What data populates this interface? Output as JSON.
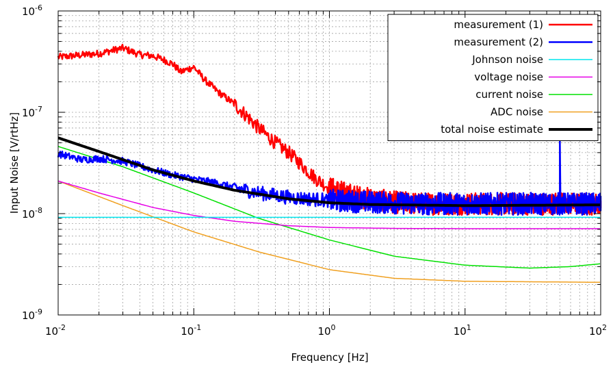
{
  "chart_data": {
    "type": "line",
    "xlabel": "Frequency [Hz]",
    "ylabel": "Input Noise [V/rtHz]",
    "xscale": "log",
    "yscale": "log",
    "xlim": [
      0.01,
      100
    ],
    "ylim": [
      1e-09,
      1e-06
    ],
    "grid": true,
    "legend_position": "top-right",
    "x_ticks": [
      {
        "value": 0.01,
        "base": "10",
        "exp": "-2"
      },
      {
        "value": 0.1,
        "base": "10",
        "exp": "-1"
      },
      {
        "value": 1,
        "base": "10",
        "exp": "0"
      },
      {
        "value": 10,
        "base": "10",
        "exp": "1"
      },
      {
        "value": 100,
        "base": "10",
        "exp": "2"
      }
    ],
    "y_ticks": [
      {
        "value": 1e-09,
        "base": "10",
        "exp": "-9"
      },
      {
        "value": 1e-08,
        "base": "10",
        "exp": "-8"
      },
      {
        "value": 1e-07,
        "base": "10",
        "exp": "-7"
      },
      {
        "value": 1e-06,
        "base": "10",
        "exp": "-6"
      }
    ],
    "series": [
      {
        "name": "measurement (1)",
        "color": "#ff0000",
        "width": 2.5,
        "noisy": true,
        "points": [
          [
            0.01,
            3.5e-07
          ],
          [
            0.02,
            3.8e-07
          ],
          [
            0.03,
            4.3e-07
          ],
          [
            0.04,
            3.7e-07
          ],
          [
            0.05,
            3.6e-07
          ],
          [
            0.06,
            3.3e-07
          ],
          [
            0.07,
            3e-07
          ],
          [
            0.08,
            2.5e-07
          ],
          [
            0.1,
            2.8e-07
          ],
          [
            0.12,
            2.1e-07
          ],
          [
            0.15,
            1.6e-07
          ],
          [
            0.2,
            1.2e-07
          ],
          [
            0.25,
            9e-08
          ],
          [
            0.3,
            7e-08
          ],
          [
            0.4,
            5e-08
          ],
          [
            0.5,
            4e-08
          ],
          [
            0.6,
            3.2e-08
          ],
          [
            0.7,
            2.6e-08
          ],
          [
            0.8,
            2.2e-08
          ],
          [
            1,
            1.8e-08
          ],
          [
            1.5,
            1.5e-08
          ],
          [
            2,
            1.4e-08
          ],
          [
            3,
            1.3e-08
          ],
          [
            5,
            1.25e-08
          ],
          [
            10,
            1.25e-08
          ],
          [
            30,
            1.25e-08
          ],
          [
            100,
            1.25e-08
          ]
        ]
      },
      {
        "name": "measurement (2)",
        "color": "#0000ff",
        "width": 2.5,
        "noisy": true,
        "points": [
          [
            0.01,
            3.9e-08
          ],
          [
            0.015,
            3.4e-08
          ],
          [
            0.02,
            3.5e-08
          ],
          [
            0.03,
            3.3e-08
          ],
          [
            0.05,
            2.7e-08
          ],
          [
            0.07,
            2.4e-08
          ],
          [
            0.1,
            2.2e-08
          ],
          [
            0.15,
            2e-08
          ],
          [
            0.2,
            1.8e-08
          ],
          [
            0.3,
            1.6e-08
          ],
          [
            0.5,
            1.45e-08
          ],
          [
            1,
            1.35e-08
          ],
          [
            2,
            1.3e-08
          ],
          [
            5,
            1.25e-08
          ],
          [
            10,
            1.25e-08
          ],
          [
            30,
            1.25e-08
          ],
          [
            100,
            1.25e-08
          ]
        ]
      },
      {
        "name": "Johnson noise",
        "color": "#00e5ee",
        "width": 1.5,
        "noisy": false,
        "points": [
          [
            0.01,
            9.2e-09
          ],
          [
            100,
            9.2e-09
          ]
        ]
      },
      {
        "name": "voltage noise",
        "color": "#e600e6",
        "width": 1.5,
        "noisy": false,
        "points": [
          [
            0.01,
            2.1e-08
          ],
          [
            0.02,
            1.6e-08
          ],
          [
            0.05,
            1.15e-08
          ],
          [
            0.1,
            9.6e-09
          ],
          [
            0.2,
            8.4e-09
          ],
          [
            0.5,
            7.6e-09
          ],
          [
            1,
            7.3e-09
          ],
          [
            3,
            7.15e-09
          ],
          [
            10,
            7.1e-09
          ],
          [
            100,
            7.1e-09
          ]
        ]
      },
      {
        "name": "current noise",
        "color": "#00e000",
        "width": 1.5,
        "noisy": false,
        "points": [
          [
            0.01,
            4.6e-08
          ],
          [
            0.03,
            2.9e-08
          ],
          [
            0.1,
            1.6e-08
          ],
          [
            0.3,
            9e-09
          ],
          [
            1,
            5.5e-09
          ],
          [
            3,
            3.8e-09
          ],
          [
            10,
            3.1e-09
          ],
          [
            30,
            2.9e-09
          ],
          [
            60,
            3e-09
          ],
          [
            100,
            3.2e-09
          ]
        ]
      },
      {
        "name": "ADC noise",
        "color": "#f0a020",
        "width": 1.5,
        "noisy": false,
        "points": [
          [
            0.01,
            2.1e-08
          ],
          [
            0.03,
            1.2e-08
          ],
          [
            0.1,
            6.6e-09
          ],
          [
            0.3,
            4.2e-09
          ],
          [
            1,
            2.8e-09
          ],
          [
            3,
            2.3e-09
          ],
          [
            10,
            2.15e-09
          ],
          [
            100,
            2.1e-09
          ]
        ]
      },
      {
        "name": "total noise estimate",
        "color": "#000000",
        "width": 4,
        "noisy": false,
        "points": [
          [
            0.01,
            5.6e-08
          ],
          [
            0.02,
            4.1e-08
          ],
          [
            0.05,
            2.7e-08
          ],
          [
            0.1,
            2.1e-08
          ],
          [
            0.2,
            1.7e-08
          ],
          [
            0.5,
            1.4e-08
          ],
          [
            1,
            1.28e-08
          ],
          [
            2,
            1.23e-08
          ],
          [
            10,
            1.2e-08
          ],
          [
            100,
            1.22e-08
          ]
        ]
      }
    ]
  }
}
